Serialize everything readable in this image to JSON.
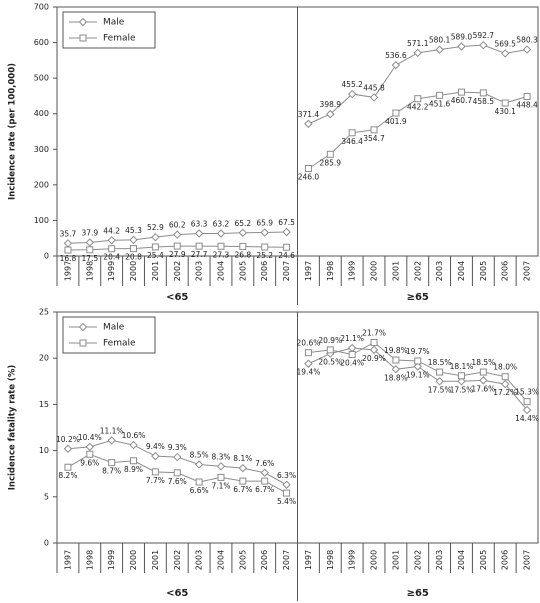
{
  "chart_data": [
    {
      "type": "line",
      "ylabel": "Incidence rate (per 100,000)",
      "categories": [
        "1997",
        "1998",
        "1999",
        "2000",
        "2001",
        "2002",
        "2003",
        "2004",
        "2005",
        "2006",
        "2007",
        "1997",
        "1998",
        "1999",
        "2000",
        "2001",
        "2002",
        "2003",
        "2004",
        "2005",
        "2006",
        "2007"
      ],
      "group_labels": [
        "<65",
        "≥65"
      ],
      "series": [
        {
          "name": "Male",
          "color": "#8c8c8c",
          "marker": "diamond",
          "values": [
            35.7,
            37.9,
            44.2,
            45.3,
            52.9,
            60.2,
            63.3,
            63.2,
            65.2,
            65.9,
            67.5,
            371.4,
            398.9,
            455.2,
            445.8,
            536.6,
            571.1,
            580.1,
            589.0,
            592.7,
            569.5,
            580.3
          ],
          "value_labels": [
            "35.7",
            "37.9",
            "44.2",
            "45.3",
            "52.9",
            "60.2",
            "63.3",
            "63.2",
            "65.2",
            "65.9",
            "67.5",
            "371.4",
            "398.9",
            "455.2",
            "445.8",
            "536.6",
            "571.1",
            "580.1",
            "589.0",
            "592.7",
            "569.5",
            "580.3"
          ]
        },
        {
          "name": "Female",
          "color": "#8c8c8c",
          "marker": "square",
          "values": [
            16.8,
            17.5,
            20.4,
            20.8,
            25.4,
            27.9,
            27.7,
            27.3,
            26.8,
            25.2,
            24.6,
            246.0,
            285.9,
            346.4,
            354.7,
            401.9,
            442.2,
            451.6,
            460.7,
            458.5,
            430.1,
            448.4
          ],
          "value_labels": [
            "16.8",
            "17.5",
            "20.4",
            "20.8",
            "25.4",
            "27.9",
            "27.7",
            "27.3",
            "26.8",
            "25.2",
            "24.6",
            "246.0",
            "285.9",
            "346.4",
            "354.7",
            "401.9",
            "442.2",
            "451.6",
            "460.7",
            "458.5",
            "430.1",
            "448.4"
          ]
        }
      ],
      "ylim": [
        0,
        700
      ],
      "yticks": [
        0,
        100,
        200,
        300,
        400,
        500,
        600,
        700
      ],
      "legend": "upper left"
    },
    {
      "type": "line",
      "ylabel": "Incidence fatality rate (%)",
      "categories": [
        "1997",
        "1998",
        "1999",
        "2000",
        "2001",
        "2002",
        "2003",
        "2004",
        "2005",
        "2006",
        "2007",
        "1997",
        "1998",
        "1999",
        "2000",
        "2001",
        "2002",
        "2003",
        "2004",
        "2005",
        "2006",
        "2007"
      ],
      "group_labels": [
        "<65",
        "≥65"
      ],
      "series": [
        {
          "name": "Male",
          "color": "#8c8c8c",
          "marker": "diamond",
          "values": [
            10.2,
            10.4,
            11.1,
            10.6,
            9.4,
            9.3,
            8.5,
            8.3,
            8.1,
            7.6,
            6.3,
            19.4,
            20.5,
            21.1,
            20.9,
            18.8,
            19.1,
            17.5,
            17.5,
            17.6,
            17.2,
            14.4
          ],
          "value_labels": [
            "10.2%",
            "10.4%",
            "11.1%",
            "10.6%",
            "9.4%",
            "9.3%",
            "8.5%",
            "8.3%",
            "8.1%",
            "7.6%",
            "6.3%",
            "19.4%",
            "20.5%",
            "21.1%",
            "20.9%",
            "18.8%",
            "19.1%",
            "17.5%",
            "17.5%",
            "17.6%",
            "17.2%",
            "14.4%"
          ]
        },
        {
          "name": "Female",
          "color": "#8c8c8c",
          "marker": "square",
          "values": [
            8.2,
            9.6,
            8.7,
            8.9,
            7.7,
            7.6,
            6.6,
            7.1,
            6.7,
            6.7,
            5.4,
            20.6,
            20.9,
            20.4,
            21.7,
            19.8,
            19.7,
            18.5,
            18.1,
            18.5,
            18.0,
            15.3
          ],
          "value_labels": [
            "8.2%",
            "9.6%",
            "8.7%",
            "8.9%",
            "7.7%",
            "7.6%",
            "6.6%",
            "7.1%",
            "6.7%",
            "6.7%",
            "5.4%",
            "20.6%",
            "20.9%",
            "20.4%",
            "21.7%",
            "19.8%",
            "19.7%",
            "18.5%",
            "18.1%",
            "18.5%",
            "18.0%",
            "15.3%"
          ]
        }
      ],
      "ylim": [
        0,
        25
      ],
      "yticks": [
        0,
        5,
        10,
        15,
        20,
        25
      ],
      "legend": "upper left"
    }
  ]
}
